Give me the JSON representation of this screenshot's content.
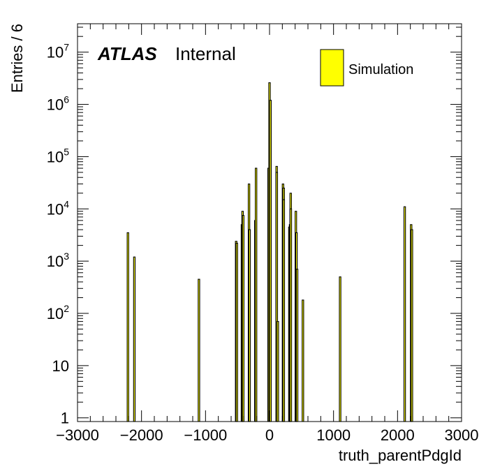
{
  "chart_data": {
    "type": "bar",
    "xlabel": "truth_parentPdgId",
    "ylabel": "Entries / 6",
    "xlim": [
      -3000,
      3000
    ],
    "ylim": [
      0.85,
      35000000
    ],
    "yscale": "log",
    "grid": false,
    "label_bold": "ATLAS",
    "label_plain": "Internal",
    "legend": [
      {
        "name": "Simulation",
        "color": "#ffff00"
      }
    ],
    "legend_position": "top-right",
    "x_ticks": [
      {
        "value": -3000,
        "label": "−3000"
      },
      {
        "value": -2000,
        "label": "−2000"
      },
      {
        "value": -1000,
        "label": "−1000"
      },
      {
        "value": 0,
        "label": "0"
      },
      {
        "value": 1000,
        "label": "1000"
      },
      {
        "value": 2000,
        "label": "2000"
      },
      {
        "value": 3000,
        "label": "3000"
      }
    ],
    "y_ticks": [
      {
        "value": 1,
        "base": "1",
        "exp": ""
      },
      {
        "value": 10,
        "base": "10",
        "exp": ""
      },
      {
        "value": 100,
        "base": "10",
        "exp": "2"
      },
      {
        "value": 1000,
        "base": "10",
        "exp": "3"
      },
      {
        "value": 10000,
        "base": "10",
        "exp": "4"
      },
      {
        "value": 100000,
        "base": "10",
        "exp": "5"
      },
      {
        "value": 1000000,
        "base": "10",
        "exp": "6"
      },
      {
        "value": 10000000,
        "base": "10",
        "exp": "7"
      }
    ],
    "series": [
      {
        "name": "Simulation",
        "color": "#ffff00",
        "x": [
          -2212,
          -2112,
          -1103,
          -521,
          -511,
          -431,
          -421,
          -411,
          -321,
          -311,
          -221,
          -211,
          -15,
          0,
          15,
          111,
          113,
          130,
          211,
          221,
          223,
          310,
          321,
          331,
          333,
          411,
          421,
          431,
          521,
          1103,
          2112,
          2212,
          2224
        ],
        "values": [
          3500,
          1200,
          450,
          2400,
          2200,
          5000,
          9000,
          7500,
          30000,
          4000,
          6000,
          60000,
          60000,
          2600000,
          1200000,
          65000,
          50000,
          70,
          30000,
          25000,
          15000,
          4500,
          5000,
          20000,
          10000,
          9000,
          3500,
          700,
          180,
          500,
          11000,
          5000,
          4000
        ]
      }
    ]
  }
}
